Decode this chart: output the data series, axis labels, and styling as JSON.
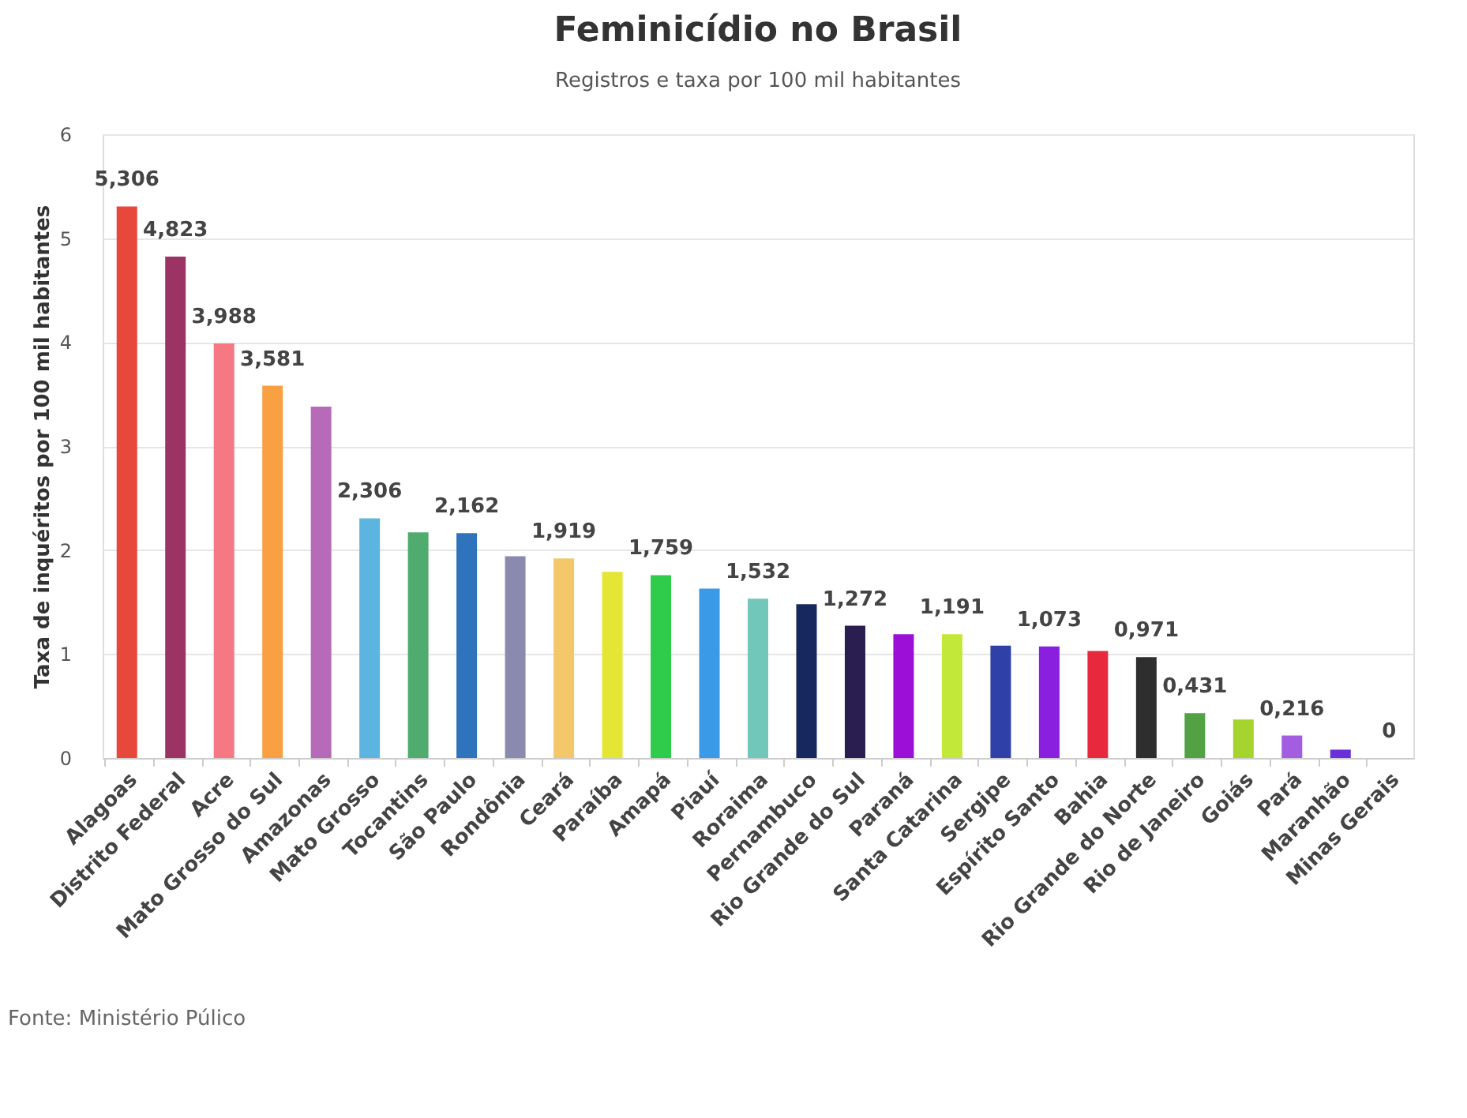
{
  "chart_data": {
    "type": "bar",
    "title": "Feminicídio no Brasil",
    "subtitle": "Registros e taxa por 100 mil habitantes",
    "ylabel": "Taxa de inquéritos por 100 mil habitantes",
    "categories": [
      "Alagoas",
      "Distrito Federal",
      "Acre",
      "Mato Grosso do Sul",
      "Amazonas",
      "Mato Grosso",
      "Tocantins",
      "São Paulo",
      "Rondônia",
      "Ceará",
      "Paraíba",
      "Amapá",
      "Piauí",
      "Roraima",
      "Pernambuco",
      "Rio Grande do Sul",
      "Paraná",
      "Santa Catarina",
      "Sergipe",
      "Espírito Santo",
      "Bahia",
      "Rio Grande do Norte",
      "Rio de Janeiro",
      "Goiás",
      "Pará",
      "Maranhão",
      "Minas Gerais"
    ],
    "values": [
      5.306,
      4.823,
      3.988,
      3.581,
      3.38,
      2.306,
      2.17,
      2.162,
      1.94,
      1.919,
      1.79,
      1.759,
      1.63,
      1.532,
      1.48,
      1.272,
      1.19,
      1.191,
      1.08,
      1.073,
      1.03,
      0.971,
      0.431,
      0.37,
      0.216,
      0.08,
      0
    ],
    "value_labels": [
      "5,306",
      "4,823",
      "3,988",
      "3,581",
      null,
      "2,306",
      null,
      "2,162",
      null,
      "1,919",
      null,
      "1,759",
      null,
      "1,532",
      null,
      "1,272",
      null,
      "1,191",
      null,
      "1,073",
      null,
      "0,971",
      "0,431",
      null,
      "0,216",
      null,
      "0"
    ],
    "colors": [
      "#e8473c",
      "#9b3465",
      "#f57883",
      "#f9a043",
      "#b76ab8",
      "#5bb5e0",
      "#50ac6e",
      "#2f73bd",
      "#8a8aae",
      "#f5c76b",
      "#e5e536",
      "#2ecc4a",
      "#3a9ae8",
      "#72c7bb",
      "#16285e",
      "#2a1d4f",
      "#9b0fd6",
      "#c2e83a",
      "#2f40a8",
      "#8a1fe0",
      "#e8283c",
      "#2e2e2e",
      "#52a143",
      "#a6d42e",
      "#a35de0",
      "#6a2fd8",
      "#8888cc"
    ],
    "ylim": [
      0,
      6
    ],
    "yticks": [
      0,
      1,
      2,
      3,
      4,
      5,
      6
    ],
    "grid": "y",
    "annotations": [
      "Fonte: Ministério Púlico"
    ]
  }
}
